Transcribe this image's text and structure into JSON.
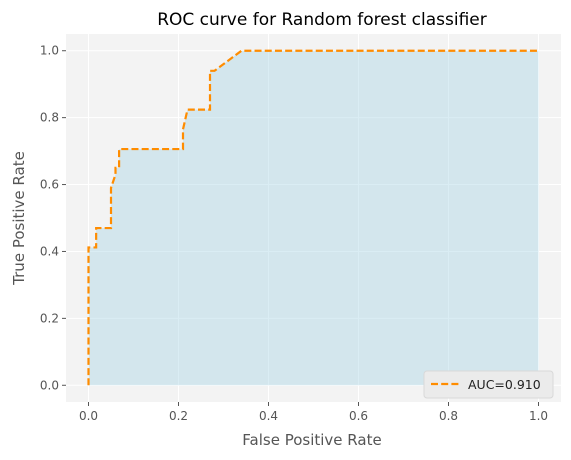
{
  "chart_data": {
    "type": "line",
    "title": "ROC curve for Random forest classifier",
    "xlabel": "False Positive Rate",
    "ylabel": "True Positive Rate",
    "xlim": [
      -0.05,
      1.05
    ],
    "ylim": [
      -0.05,
      1.05
    ],
    "xticks": [
      0.0,
      0.2,
      0.4,
      0.6,
      0.8,
      1.0
    ],
    "yticks": [
      0.0,
      0.2,
      0.4,
      0.6,
      0.8,
      1.0
    ],
    "xtick_labels": [
      "0.0",
      "0.2",
      "0.4",
      "0.6",
      "0.8",
      "1.0"
    ],
    "ytick_labels": [
      "0.0",
      "0.2",
      "0.4",
      "0.6",
      "0.8",
      "1.0"
    ],
    "grid": true,
    "legend": {
      "position": "lower-right"
    },
    "series": [
      {
        "name": "AUC=0.910",
        "style": "dashed",
        "color": "#ff8c00",
        "fill_color": "#add8e6",
        "x": [
          0.0,
          0.0,
          0.0,
          0.017,
          0.017,
          0.05,
          0.05,
          0.06,
          0.06,
          0.068,
          0.068,
          0.068,
          0.2,
          0.21,
          0.21,
          0.22,
          0.22,
          0.27,
          0.27,
          0.27,
          0.27,
          0.28,
          0.29,
          0.32,
          0.34,
          0.34,
          1.0
        ],
        "y": [
          0.0,
          0.412,
          0.412,
          0.412,
          0.47,
          0.47,
          0.59,
          0.63,
          0.65,
          0.65,
          0.706,
          0.706,
          0.706,
          0.706,
          0.765,
          0.824,
          0.824,
          0.824,
          0.88,
          0.94,
          0.94,
          0.94,
          0.95,
          0.98,
          1.0,
          1.0,
          1.0
        ]
      }
    ],
    "colors": {
      "figure_bg": "#ffffff",
      "axes_bg": "#f3f3f3",
      "grid": "#ffffff",
      "text": "#555555",
      "title": "#000000"
    }
  }
}
